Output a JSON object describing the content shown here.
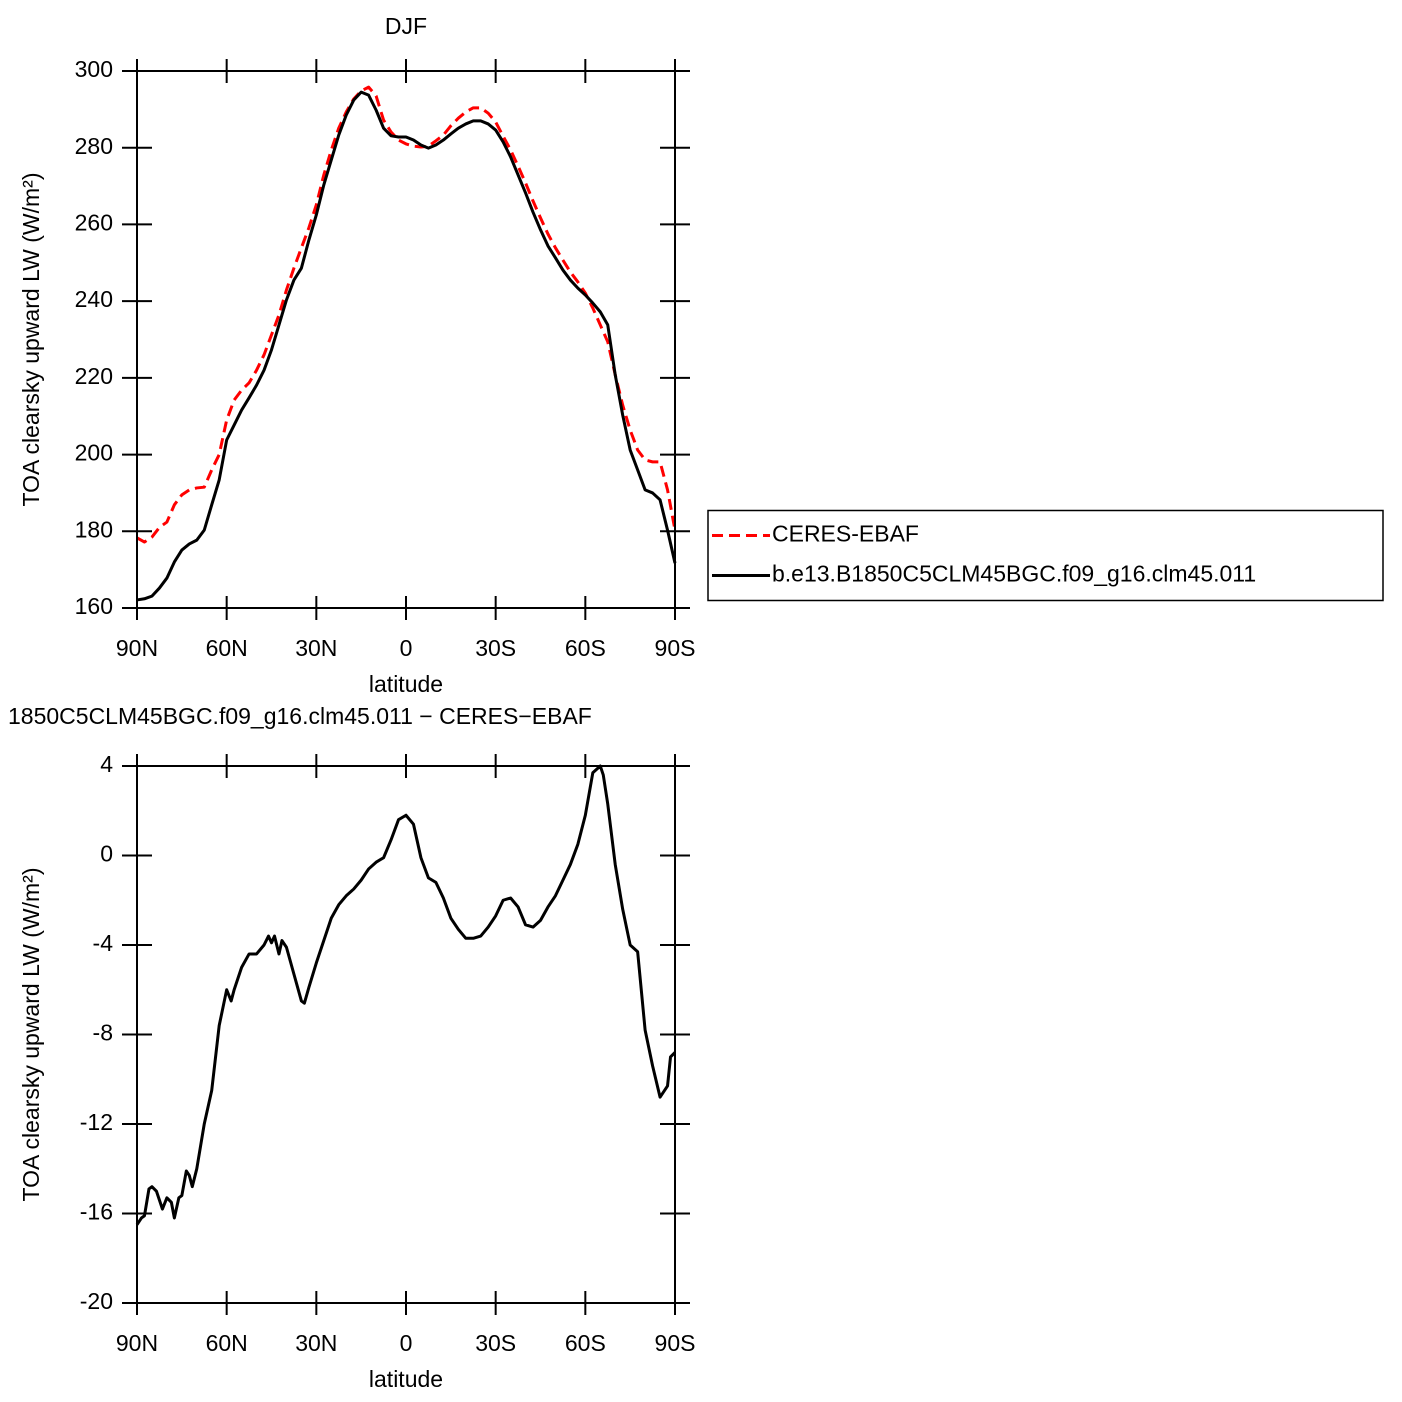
{
  "chart_data": [
    {
      "type": "line",
      "title": "DJF",
      "xlabel": "latitude",
      "ylabel": "TOA clearsky upward LW (W/m²)",
      "legend": "right",
      "x": [
        90,
        87.5,
        85,
        82.5,
        80,
        77.5,
        75,
        72.5,
        70,
        67.5,
        65,
        62.5,
        60,
        57.5,
        55,
        52.5,
        50,
        47.5,
        45,
        42.5,
        40,
        37.5,
        35,
        32.5,
        30,
        27.5,
        25,
        22.5,
        20,
        17.5,
        15,
        12.5,
        10,
        7.5,
        5,
        2.5,
        0,
        -2.5,
        -5,
        -7.5,
        -10,
        -12.5,
        -15,
        -17.5,
        -20,
        -22.5,
        -25,
        -27.5,
        -30,
        -32.5,
        -35,
        -37.5,
        -40,
        -42.5,
        -45,
        -47.5,
        -50,
        -52.5,
        -55,
        -57.5,
        -60,
        -62.5,
        -65,
        -67.5,
        -70,
        -72.5,
        -75,
        -77.5,
        -80,
        -82.5,
        -85,
        -87.5,
        -90
      ],
      "series": [
        {
          "name": "CERES-EBAF",
          "color": "#ff0000",
          "style": "dashed",
          "values": [
            178.3,
            177.2,
            178.5,
            181,
            182.4,
            186.9,
            189.5,
            190.8,
            191.3,
            191.5,
            196,
            200,
            209,
            214.2,
            216.8,
            218.7,
            222,
            226,
            231.2,
            236.4,
            242.9,
            248.6,
            253.9,
            259.1,
            265.1,
            272.9,
            279.4,
            285.1,
            289.3,
            292.7,
            294.8,
            295.8,
            293.5,
            287.2,
            284.1,
            282,
            281,
            280.4,
            280.2,
            280.4,
            281.8,
            283.3,
            285.7,
            287.7,
            289.3,
            290.4,
            290.4,
            289,
            286.7,
            283,
            279.4,
            275.2,
            270.8,
            266.1,
            261.7,
            257.5,
            253.9,
            250.7,
            247.6,
            245,
            242.1,
            238.2,
            233.8,
            229.4,
            220.8,
            212.9,
            206.4,
            201.2,
            198.6,
            198.1,
            198.1,
            190.8,
            180.3
          ]
        },
        {
          "name": "b.e13.B1850C5CLM45BGC.f09_g16.clm45.011",
          "color": "#000000",
          "style": "solid",
          "values": [
            162.1,
            162.4,
            163.1,
            165.2,
            167.8,
            172,
            175.1,
            176.7,
            177.7,
            180.3,
            186.9,
            193.4,
            203.8,
            207.7,
            211.6,
            214.8,
            218.1,
            222,
            227.3,
            233.8,
            240.3,
            245.5,
            248.6,
            255.9,
            262.5,
            270.3,
            276.8,
            283.3,
            288.5,
            292.4,
            294.5,
            293.7,
            289.8,
            285.1,
            283.1,
            282.8,
            282.8,
            282,
            280.7,
            279.9,
            280.7,
            282,
            283.6,
            285.1,
            286.2,
            287,
            287,
            286.2,
            284.6,
            281.5,
            277.6,
            272.9,
            268.2,
            263.2,
            258.6,
            254.4,
            251.3,
            248.1,
            245.5,
            243.4,
            241.6,
            239.5,
            237.2,
            233.8,
            220.8,
            210.3,
            201.2,
            196,
            190.8,
            190,
            188.2,
            180.3,
            171.7
          ]
        }
      ],
      "xlim": [
        90,
        -90
      ],
      "xticks": [
        {
          "value": 90,
          "label": "90N"
        },
        {
          "value": 60,
          "label": "60N"
        },
        {
          "value": 30,
          "label": "30N"
        },
        0,
        {
          "value": -30,
          "label": "30S"
        },
        {
          "value": -60,
          "label": "60S"
        },
        {
          "value": -90,
          "label": "90S"
        }
      ],
      "ylim": [
        160,
        300
      ],
      "yticks": [
        160,
        180,
        200,
        220,
        240,
        260,
        280,
        300
      ]
    },
    {
      "type": "line",
      "title": "1850C5CLM45BGC.f09_g16.clm45.011 − CERES−EBAF",
      "xlabel": "latitude",
      "ylabel": "TOA clearsky upward LW (W/m²)",
      "x": [
        90,
        88.5,
        87.5,
        86,
        85,
        83.5,
        82.5,
        81.5,
        80,
        78.5,
        77.5,
        76,
        75,
        73.5,
        72.5,
        71.5,
        70,
        67.5,
        65,
        62.5,
        60,
        58.5,
        57.5,
        55,
        52.5,
        50,
        47.5,
        46,
        45,
        44,
        42.5,
        41.5,
        40,
        37.5,
        35,
        34,
        32.5,
        30,
        27.5,
        25,
        22.5,
        20,
        17.5,
        15,
        12.5,
        10,
        7.5,
        5,
        2.5,
        0,
        -2.5,
        -5,
        -7.5,
        -10,
        -12.5,
        -15,
        -17.5,
        -20,
        -22.5,
        -25,
        -27.5,
        -30,
        -32.5,
        -35,
        -37.5,
        -40,
        -42.5,
        -45,
        -47.5,
        -50,
        -52.5,
        -55,
        -57.5,
        -60,
        -62.5,
        -65,
        -66,
        -67.5,
        -70,
        -72.5,
        -75,
        -77.5,
        -80,
        -82.5,
        -85,
        -87.5,
        -88.5,
        -90
      ],
      "values": [
        -16.5,
        -16.2,
        -16.1,
        -14.9,
        -14.8,
        -15,
        -15.4,
        -15.8,
        -15.3,
        -15.5,
        -16.2,
        -15.3,
        -15.2,
        -14.1,
        -14.3,
        -14.8,
        -14,
        -12,
        -10.5,
        -7.6,
        -6,
        -6.5,
        -6,
        -5,
        -4.4,
        -4.4,
        -4,
        -3.6,
        -3.9,
        -3.6,
        -4.4,
        -3.8,
        -4.1,
        -5.3,
        -6.5,
        -6.6,
        -5.9,
        -4.8,
        -3.8,
        -2.8,
        -2.2,
        -1.8,
        -1.5,
        -1.1,
        -0.6,
        -0.3,
        -0.1,
        0.7,
        1.6,
        1.8,
        1.4,
        -0.1,
        -1,
        -1.2,
        -1.9,
        -2.8,
        -3.3,
        -3.7,
        -3.7,
        -3.6,
        -3.2,
        -2.7,
        -2,
        -1.9,
        -2.3,
        -3.1,
        -3.2,
        -2.9,
        -2.3,
        -1.8,
        -1.1,
        -0.4,
        0.5,
        1.8,
        3.7,
        4,
        3.6,
        2.3,
        -0.4,
        -2.4,
        -4,
        -4.3,
        -7.8,
        -9.4,
        -10.8,
        -10.3,
        -9,
        -8.8
      ],
      "color": "#000000",
      "xlim": [
        90,
        -90
      ],
      "xticks": [
        {
          "value": 90,
          "label": "90N"
        },
        {
          "value": 60,
          "label": "60N"
        },
        {
          "value": 30,
          "label": "30N"
        },
        0,
        {
          "value": -30,
          "label": "30S"
        },
        {
          "value": -60,
          "label": "60S"
        },
        {
          "value": -90,
          "label": "90S"
        }
      ],
      "ylim": [
        -20,
        4
      ],
      "yticks": [
        -20,
        -16,
        -12,
        -8,
        -4,
        0,
        4
      ]
    }
  ]
}
